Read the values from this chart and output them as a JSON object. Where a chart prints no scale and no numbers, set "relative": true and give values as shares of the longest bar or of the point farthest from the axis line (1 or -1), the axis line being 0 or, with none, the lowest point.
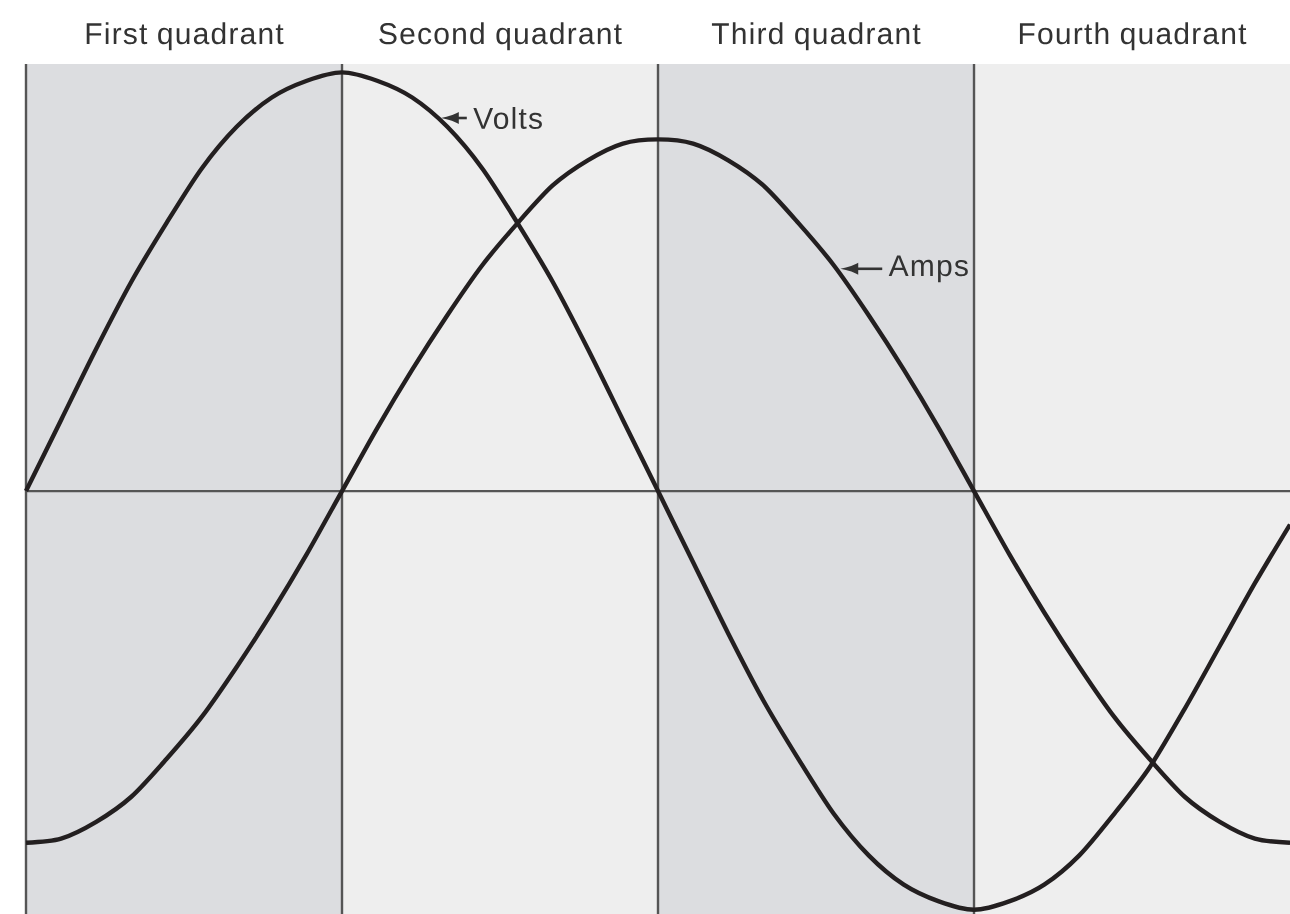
{
  "chart_data": {
    "type": "line",
    "relative": true,
    "categories": [
      null,
      null,
      null,
      null,
      null,
      null,
      null,
      null,
      null,
      null,
      null,
      null,
      null,
      null,
      null,
      null,
      null,
      null,
      null,
      null,
      null,
      null,
      null,
      null,
      null,
      null,
      null,
      null,
      null,
      null,
      null,
      null,
      null,
      null,
      null,
      null,
      null
    ],
    "series": [
      {
        "name": "Volts",
        "color": "#231f20",
        "values": [
          0,
          0.17,
          0.34,
          0.5,
          0.64,
          0.77,
          0.87,
          0.94,
          0.98,
          1,
          0.98,
          0.94,
          0.87,
          0.77,
          0.64,
          0.5,
          0.34,
          0.17,
          0,
          -0.17,
          -0.34,
          -0.5,
          -0.64,
          -0.77,
          -0.87,
          -0.94,
          -0.98,
          -1,
          -0.98,
          -0.94,
          -0.87,
          -0.77,
          -0.66,
          -0.52,
          -0.37,
          -0.22,
          -0.08
        ]
      },
      {
        "name": "Amps",
        "color": "#231f20",
        "values": [
          -0.84,
          -0.83,
          -0.79,
          -0.73,
          -0.64,
          -0.54,
          -0.42,
          -0.29,
          -0.15,
          0,
          0.15,
          0.29,
          0.42,
          0.54,
          0.64,
          0.73,
          0.79,
          0.83,
          0.84,
          0.83,
          0.79,
          0.73,
          0.64,
          0.54,
          0.42,
          0.29,
          0.15,
          0,
          -0.15,
          -0.29,
          -0.42,
          -0.54,
          -0.64,
          -0.73,
          -0.79,
          -0.83,
          -0.84
        ]
      }
    ],
    "annotations": [
      "First quadrant",
      "Second quadrant",
      "Third quadrant",
      "Fourth quadrant"
    ]
  }
}
